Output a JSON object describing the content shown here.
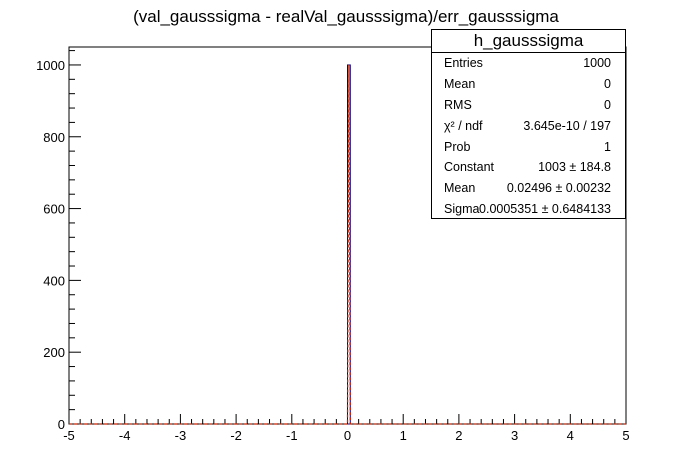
{
  "chart_data": {
    "type": "bar",
    "title": "(val_gausssigma - realVal_gausssigma)/err_gausssigma",
    "xlabel": "",
    "ylabel": "",
    "xlim": [
      -5,
      5
    ],
    "ylim": [
      0,
      1050
    ],
    "x_ticks": [
      "-5",
      "-4",
      "-3",
      "-2",
      "-1",
      "0",
      "1",
      "2",
      "3",
      "4",
      "5"
    ],
    "y_ticks": [
      "0",
      "200",
      "400",
      "600",
      "800",
      "1000"
    ],
    "bins": 200,
    "series": [
      {
        "histogram": "h_gausssigma",
        "bin_low_edges": [
          0.0
        ],
        "bin_width": 0.05,
        "values": [
          1000
        ]
      }
    ],
    "fit": {
      "type": "gaussian",
      "constant": 1003,
      "mean": 0.02496,
      "sigma": 0.0005351
    },
    "colors": {
      "histogram": "#00008b",
      "fit": "#cc2200",
      "axis": "#000000"
    }
  },
  "stats": {
    "title": "h_gausssigma",
    "rows": [
      {
        "label": "Entries",
        "value": "1000"
      },
      {
        "label": "Mean",
        "value": "0"
      },
      {
        "label": "RMS",
        "value": "0"
      },
      {
        "label": "χ² / ndf",
        "value": "3.645e-10 / 197"
      },
      {
        "label": "Prob",
        "value": "1"
      },
      {
        "label": "Constant",
        "value": "1003  ± 184.8"
      },
      {
        "label": "Mean",
        "value": "0.02496  ± 0.00232"
      },
      {
        "label": "Sigma",
        "value": "0.0005351  ± 0.6484133"
      }
    ]
  }
}
